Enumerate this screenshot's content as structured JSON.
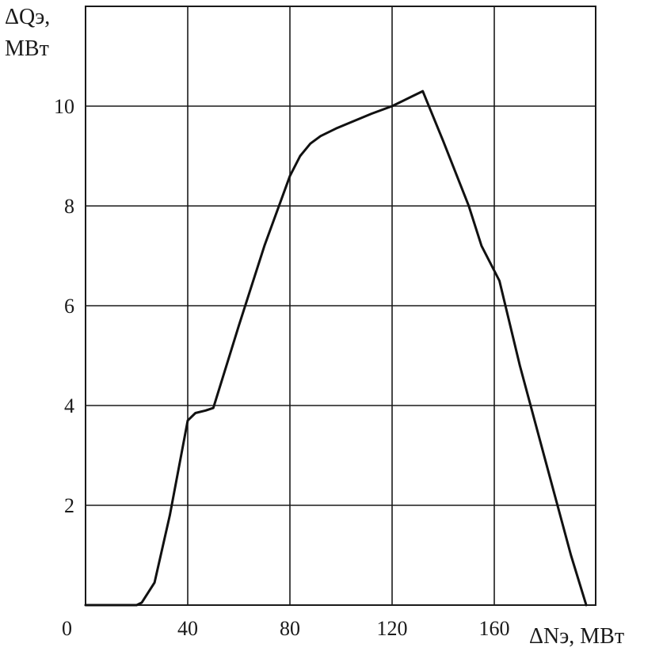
{
  "chart_data": {
    "type": "line",
    "ylabel_line1": "ΔQэ,",
    "ylabel_line2": "МВт",
    "xlabel": "ΔNэ, МВт",
    "origin_label": "0",
    "xlim": [
      0,
      200
    ],
    "ylim": [
      0,
      10
    ],
    "x_ticks": [
      40,
      80,
      120,
      160
    ],
    "x_tick_labels": [
      "40",
      "80",
      "120",
      "160"
    ],
    "y_ticks": [
      2,
      4,
      6,
      8,
      10
    ],
    "y_tick_labels": [
      "2",
      "4",
      "6",
      "8",
      "10"
    ],
    "grid": true,
    "series": [
      {
        "x": [
          0,
          20,
          22,
          27,
          33,
          40,
          43,
          47,
          50,
          60,
          70,
          80,
          84,
          88,
          92,
          98,
          105,
          112,
          120,
          128,
          132,
          140,
          150,
          155,
          162,
          170,
          180,
          190,
          196
        ],
        "y": [
          0,
          0,
          0.05,
          0.45,
          1.8,
          3.7,
          3.85,
          3.9,
          3.95,
          5.6,
          7.2,
          8.6,
          9.0,
          9.25,
          9.4,
          9.55,
          9.7,
          9.85,
          10.0,
          10.2,
          10.3,
          9.3,
          8.0,
          7.2,
          6.5,
          4.8,
          2.9,
          1.0,
          0
        ]
      }
    ]
  }
}
